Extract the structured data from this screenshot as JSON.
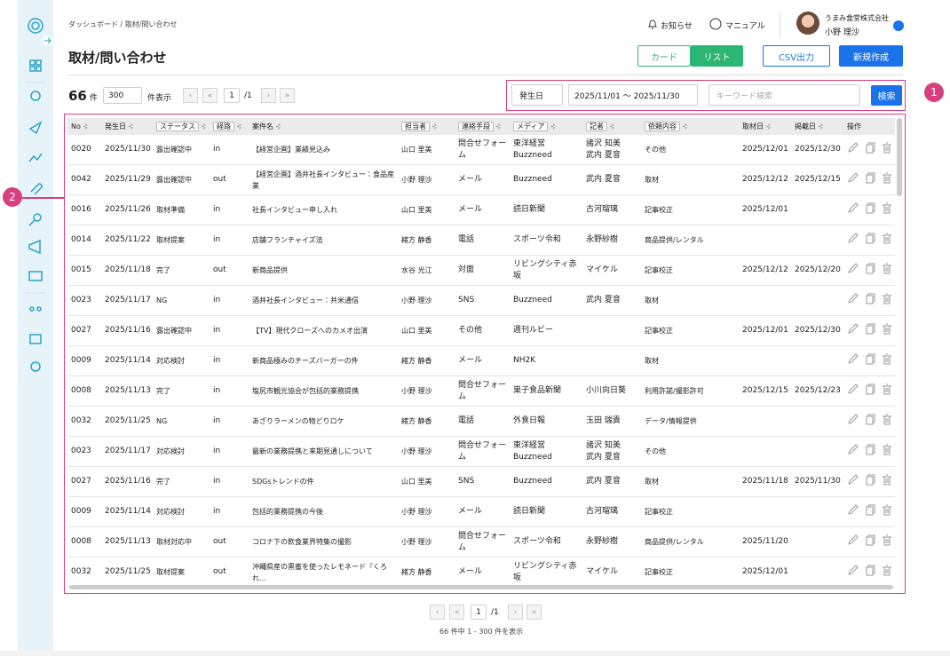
{
  "breadcrumb": "ダッシュボード / 取材/問い合わせ",
  "header": {
    "notice": "お知らせ",
    "manual": "マニュアル",
    "company": "うまみ食堂株式会社",
    "user": "小野 理沙"
  },
  "title": "取材/問い合わせ",
  "buttons": {
    "card": "カード",
    "list": "リスト",
    "csv": "CSV出力",
    "create": "新規作成"
  },
  "count": {
    "total": "66",
    "unit": "件",
    "page_size": "300",
    "page_size_label": "件表示",
    "page": "1",
    "pages": "/1"
  },
  "filter": {
    "date_field": "発生日",
    "date_range": "2025/11/01 〜 2025/11/30",
    "keyword_placeholder": "キーワード検索",
    "search": "検索"
  },
  "annotations": [
    "1",
    "2"
  ],
  "table": {
    "columns": [
      "No",
      "発生日",
      "ステータス",
      "経路",
      "案件名",
      "担当者",
      "連絡手段",
      "メディア",
      "記者",
      "依頼内容",
      "取材日",
      "掲載日",
      "操作"
    ],
    "rows": [
      [
        "0020",
        "2025/11/30",
        "露出確認中",
        "in",
        "【経営企画】業績見込み",
        "山口 里美",
        "問合せフォーム",
        "東洋経営\nBuzzneed",
        "諸沢 知美\n武内 夏音",
        "その他",
        "2025/12/01",
        "2025/12/30"
      ],
      [
        "0042",
        "2025/11/29",
        "露出確認中",
        "out",
        "【経営企画】酒井社長インタビュー：食品産業",
        "小野 理沙",
        "メール",
        "Buzzneed",
        "武内 夏音",
        "取材",
        "2025/12/12",
        "2025/12/15"
      ],
      [
        "0016",
        "2025/11/26",
        "取材準備",
        "in",
        "社長インタビュー申し入れ",
        "山口 里美",
        "メール",
        "読日新聞",
        "古河瑠璃",
        "記事校正",
        "2025/12/01",
        null
      ],
      [
        "0014",
        "2025/11/22",
        "取材提案",
        "in",
        "店舗フランチャイズ法",
        "緒方 静香",
        "電話",
        "スポーツ令和",
        "永野紗樹",
        "商品提供/レンタル",
        null,
        null
      ],
      [
        "0015",
        "2025/11/18",
        "完了",
        "out",
        "新商品提供",
        "水谷 光江",
        "対面",
        "リビングシティ赤坂",
        "マイケル",
        "記事校正",
        "2025/12/12",
        "2025/12/20"
      ],
      [
        "0023",
        "2025/11/17",
        "NG",
        "in",
        "酒井社長インタビュー：共米通信",
        "小野 理沙",
        "SNS",
        "Buzzneed",
        "武内 夏音",
        "取材",
        null,
        null
      ],
      [
        "0027",
        "2025/11/16",
        "露出確認中",
        "in",
        "【TV】現代クローズへのカメオ出演",
        "山口 里美",
        "その他",
        "週刊ルビー",
        null,
        "記事校正",
        "2025/12/01",
        "2025/12/30"
      ],
      [
        "0009",
        "2025/11/14",
        "対応検討",
        "in",
        "新商品極みのチーズバーガーの件",
        "緒方 静香",
        "メール",
        "NH2K",
        null,
        "取材",
        null,
        null
      ],
      [
        "0008",
        "2025/11/13",
        "完了",
        "in",
        "塩尻市観光協会が包括的業務提携",
        "小野 理沙",
        "問合せフォーム",
        "巣子食品新聞",
        "小川向日葵",
        "利用許諾/撮影許可",
        "2025/12/15",
        "2025/12/23"
      ],
      [
        "0032",
        "2025/11/25",
        "NG",
        "in",
        "あざりラーメンの物どりロケ",
        "緒方 静香",
        "電話",
        "外食日報",
        "玉田 瑞貴",
        "データ/情報提供",
        null,
        null
      ],
      [
        "0023",
        "2025/11/17",
        "対応検討",
        "in",
        "最新の業務提携と来期見通しについて",
        "小野 理沙",
        "問合せフォーム",
        "東洋経営\nBuzzneed",
        "諸沢 知美\n武内 夏音",
        "その他",
        null,
        null
      ],
      [
        "0027",
        "2025/11/16",
        "完了",
        "in",
        "SDGsトレンドの件",
        "山口 里美",
        "SNS",
        "Buzzneed",
        "武内 夏音",
        "取材",
        "2025/11/18",
        "2025/11/30"
      ],
      [
        "0009",
        "2025/11/14",
        "対応検討",
        "in",
        "包括的業務提携の今後",
        "小野 理沙",
        "メール",
        "読日新聞",
        "古河瑠璃",
        "記事校正",
        null,
        null
      ],
      [
        "0008",
        "2025/11/13",
        "取材対応中",
        "out",
        "コロナ下の飲食業界特集の撮影",
        "小野 理沙",
        "問合せフォーム",
        "スポーツ令和",
        "永野紗樹",
        "商品提供/レンタル",
        "2025/11/20",
        null
      ],
      [
        "0032",
        "2025/11/25",
        "取材提案",
        "out",
        "沖縄県産の黒蜜を使ったレモネード『くろれ…",
        "緒方 静香",
        "メール",
        "リビングシティ赤坂",
        "マイケル",
        "記事校正",
        "2025/12/01",
        null
      ]
    ]
  },
  "footer": {
    "page": "1",
    "pages": "/1",
    "summary": "66 件中 1 - 300 件を表示"
  }
}
